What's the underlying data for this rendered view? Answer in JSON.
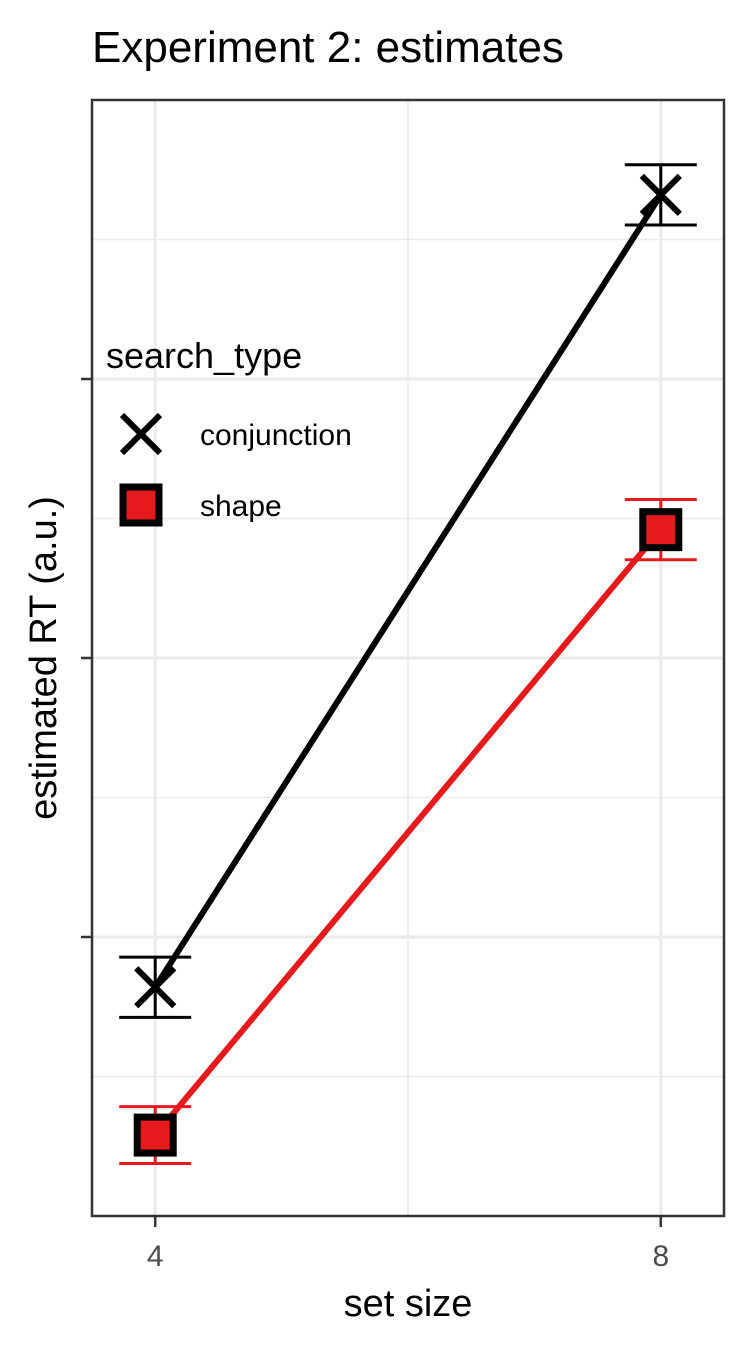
{
  "chart_data": {
    "type": "line",
    "title": "Experiment 2: estimates",
    "xlabel": "set size",
    "ylabel": "estimated RT (a.u.)",
    "x": [
      4,
      8
    ],
    "x_tick_labels": [
      "4",
      "8"
    ],
    "xlim": [
      3.5,
      8.5
    ],
    "ylim": [
      0.0,
      1.0
    ],
    "y_tick_labels_shown": false,
    "grid": true,
    "legend": {
      "title": "search_type",
      "position": "top-left"
    },
    "series": [
      {
        "name": "conjunction",
        "color": "#000000",
        "marker": "x",
        "values": [
          0.205,
          0.915
        ],
        "ci_low": [
          0.178,
          0.888
        ],
        "ci_high": [
          0.232,
          0.942
        ]
      },
      {
        "name": "shape",
        "color": "#e41a1c",
        "marker": "square",
        "values": [
          0.0725,
          0.615
        ],
        "ci_low": [
          0.047,
          0.588
        ],
        "ci_high": [
          0.098,
          0.642
        ]
      }
    ]
  }
}
